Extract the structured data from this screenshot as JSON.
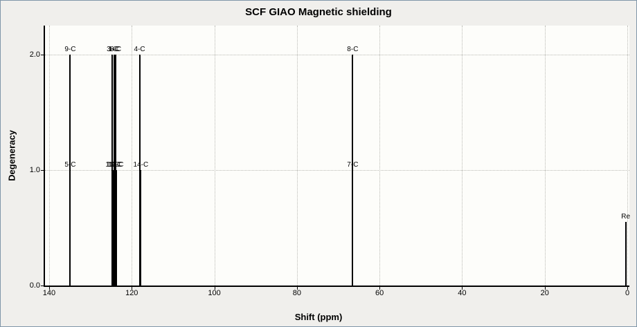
{
  "window": {
    "title": "SCF GIAO Magnetic shielding"
  },
  "colors": {
    "window_bg": "#f0efec",
    "plot_bg": "#fdfdfa",
    "axis": "#000000",
    "grid": "#b9b9b3",
    "peak": "#000000",
    "border": "#7f96a8"
  },
  "chart_data": {
    "type": "bar",
    "subtype": "stick-spectrum",
    "title": "SCF GIAO Magnetic shielding",
    "xlabel": "Shift (ppm)",
    "ylabel": "Degeneracy",
    "x_axis_reversed": true,
    "grid": "dotted",
    "xlim": [
      141,
      -0.5
    ],
    "ylim": [
      0,
      2.25
    ],
    "xticks": [
      140,
      120,
      100,
      80,
      60,
      40,
      20,
      0
    ],
    "yticks": [
      0,
      1,
      2
    ],
    "ytick_labels": [
      "0.0",
      "1.0",
      "2.0"
    ],
    "peaks": [
      {
        "label": "9-C",
        "shift": 134.9,
        "degeneracy": 2
      },
      {
        "label": "5-C",
        "shift": 134.9,
        "degeneracy": 1
      },
      {
        "label": "3-C",
        "shift": 124.7,
        "degeneracy": 2
      },
      {
        "label": "1-C",
        "shift": 124.3,
        "degeneracy": 2
      },
      {
        "label": "6-C",
        "shift": 123.9,
        "degeneracy": 2
      },
      {
        "label": "11-C",
        "shift": 124.6,
        "degeneracy": 1
      },
      {
        "label": "12-C",
        "shift": 124.2,
        "degeneracy": 1
      },
      {
        "label": "13-C",
        "shift": 123.8,
        "degeneracy": 1
      },
      {
        "label": "4-C",
        "shift": 118.1,
        "degeneracy": 2
      },
      {
        "label": "14-C",
        "shift": 117.8,
        "degeneracy": 1
      },
      {
        "label": "8-C",
        "shift": 66.5,
        "degeneracy": 2
      },
      {
        "label": "7-C",
        "shift": 66.5,
        "degeneracy": 1
      },
      {
        "label": "Re",
        "shift": 0.4,
        "degeneracy": 0.55
      }
    ]
  }
}
